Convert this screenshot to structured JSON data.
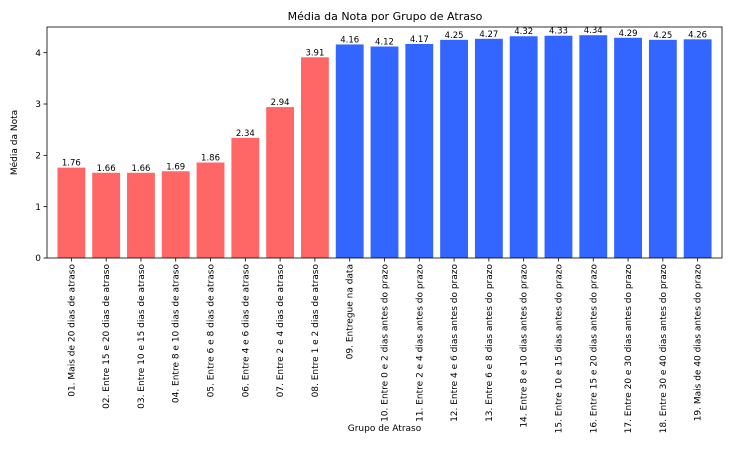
{
  "chart_data": {
    "type": "bar",
    "title": "Média da Nota por Grupo de Atraso",
    "xlabel": "Grupo de Atraso",
    "ylabel": "Média da Nota",
    "ylim": [
      0,
      4.5
    ],
    "yticks": [
      0,
      1,
      2,
      3,
      4
    ],
    "grid": false,
    "colors": {
      "late": "#ff6666",
      "on_time_or_early": "#3366ff"
    },
    "categories": [
      "01. Mais de 20 dias de atraso",
      "02. Entre 15 e 20 dias de atraso",
      "03. Entre 10 e 15 dias de atraso",
      "04. Entre 8 e 10 dias de atraso",
      "05. Entre 6 e 8 dias de atraso",
      "06. Entre 4 e 6 dias de atraso",
      "07. Entre 2 e 4 dias de atraso",
      "08. Entre 1 e 2 dias de atraso",
      "09. Entregue na data",
      "10. Entre 0 e 2 dias antes do prazo",
      "11. Entre 2 e 4 dias antes do prazo",
      "12. Entre 4 e 6 dias antes do prazo",
      "13. Entre 6 e 8 dias antes do prazo",
      "14. Entre 8 e 10 dias antes do prazo",
      "15. Entre 10 e 15 dias antes do prazo",
      "16. Entre 15 e 20 dias antes do prazo",
      "17. Entre 20 e 30 dias antes do prazo",
      "18. Entre 30 e 40 dias antes do prazo",
      "19. Mais de 40 dias antes do prazo"
    ],
    "values": [
      1.76,
      1.66,
      1.66,
      1.69,
      1.86,
      2.34,
      2.94,
      3.91,
      4.16,
      4.12,
      4.17,
      4.25,
      4.27,
      4.32,
      4.33,
      4.34,
      4.29,
      4.25,
      4.26
    ],
    "value_labels": [
      "1.76",
      "1.66",
      "1.66",
      "1.69",
      "1.86",
      "2.34",
      "2.94",
      "3.91",
      "4.16",
      "4.12",
      "4.17",
      "4.25",
      "4.27",
      "4.32",
      "4.33",
      "4.34",
      "4.29",
      "4.25",
      "4.26"
    ],
    "bar_colors": [
      "late",
      "late",
      "late",
      "late",
      "late",
      "late",
      "late",
      "late",
      "on_time_or_early",
      "on_time_or_early",
      "on_time_or_early",
      "on_time_or_early",
      "on_time_or_early",
      "on_time_or_early",
      "on_time_or_early",
      "on_time_or_early",
      "on_time_or_early",
      "on_time_or_early",
      "on_time_or_early"
    ]
  }
}
